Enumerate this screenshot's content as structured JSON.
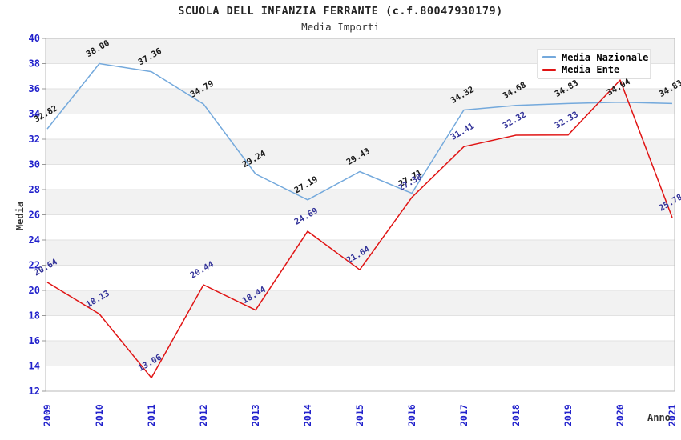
{
  "header": {
    "title": "SCUOLA DELL INFANZIA FERRANTE (c.f.80047930179)",
    "subtitle": "Media Importi"
  },
  "legend": {
    "items": [
      "Media Nazionale",
      "Media Ente"
    ]
  },
  "chart_data": {
    "type": "line",
    "title": "SCUOLA DELL INFANZIA FERRANTE (c.f.80047930179)",
    "subtitle": "Media Importi",
    "xlabel": "Anno",
    "ylabel": "Media",
    "x": [
      2009,
      2010,
      2011,
      2012,
      2013,
      2014,
      2015,
      2016,
      2017,
      2018,
      2019,
      2020,
      2021
    ],
    "series": [
      {
        "name": "Media Nazionale",
        "color": "#74a9dc",
        "label_color": "#1a1a1a",
        "values": [
          32.82,
          38.0,
          37.36,
          34.79,
          29.24,
          27.19,
          29.43,
          27.71,
          34.32,
          34.68,
          34.83,
          34.94,
          34.83
        ]
      },
      {
        "name": "Media Ente",
        "color": "#e01414",
        "label_color": "#333399",
        "values": [
          20.64,
          18.13,
          13.06,
          20.44,
          18.44,
          24.69,
          21.64,
          27.38,
          31.41,
          32.32,
          32.33,
          36.69,
          25.78
        ]
      }
    ],
    "ylim": [
      12,
      40
    ],
    "ytick_step": 2,
    "grid": "horizontal-bands",
    "legend_position": "top-right"
  },
  "colors": {
    "band": "#f2f2f2",
    "grid_line": "#e2e2e2",
    "plot_border": "#b8b8b8",
    "axis_tick": "#999999",
    "tick_label_blue": "#2222cc",
    "axis_title": "#333333"
  }
}
